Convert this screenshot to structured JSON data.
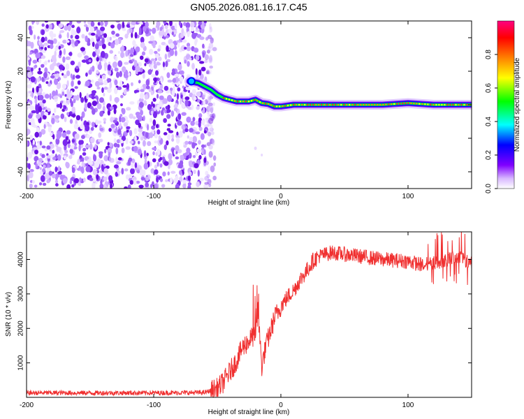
{
  "chart_data": [
    {
      "type": "heatmap",
      "title": "GN05.2026.081.16.17.C45",
      "xlabel": "Height of straight line (km)",
      "ylabel": "Frequency (Hz)",
      "xlim": [
        -200,
        150
      ],
      "ylim": [
        -50,
        50
      ],
      "xticks": [
        -200,
        -100,
        0,
        100
      ],
      "xtick_labels": [
        "-200",
        "-100",
        "0",
        "100"
      ],
      "yticks": [
        -40,
        -20,
        0,
        20,
        40
      ],
      "ytick_labels": [
        "-40",
        "-20",
        "0",
        "20",
        "40"
      ],
      "colorbar": {
        "label": "Normalized spectral amplitude",
        "range": [
          0,
          1
        ],
        "ticks": [
          0.0,
          0.2,
          0.4,
          0.6,
          0.8
        ],
        "tick_labels": [
          "0.0",
          "0.2",
          "0.4",
          "0.6",
          "0.8"
        ],
        "colormap": [
          "#ffffff",
          "#8000ff",
          "#0000ff",
          "#00ffff",
          "#00ff00",
          "#ffff00",
          "#ff8000",
          "#ff0000",
          "#ff0080"
        ]
      },
      "noise_region": {
        "x_range": [
          -200,
          -52
        ],
        "description": "broadband noise"
      },
      "carrier_trace": {
        "x": [
          -72,
          -65,
          -60,
          -55,
          -50,
          -45,
          -40,
          -35,
          -30,
          -25,
          -20,
          -15,
          -10,
          -5,
          0,
          10,
          20,
          40,
          60,
          80,
          100,
          120,
          150
        ],
        "freq": [
          14,
          13,
          11,
          9,
          6,
          4,
          3,
          2,
          2,
          2,
          3,
          1,
          0.5,
          -1,
          -1,
          0,
          0,
          0,
          0,
          0,
          1,
          0,
          0
        ]
      }
    },
    {
      "type": "line",
      "xlabel": "Height of straight line (km)",
      "ylabel": "SNR (10 * v/v)",
      "xlim": [
        -200,
        150
      ],
      "ylim": [
        0,
        4800
      ],
      "xticks": [
        -200,
        -100,
        0,
        100
      ],
      "xtick_labels": [
        "-200",
        "-100",
        "0",
        "100"
      ],
      "yticks": [
        1000,
        2000,
        3000,
        4000
      ],
      "ytick_labels": [
        "1000",
        "2000",
        "3000",
        "4000"
      ],
      "series": [
        {
          "name": "SNR",
          "color": "#f03030",
          "x": [
            -200,
            -150,
            -100,
            -60,
            -50,
            -45,
            -40,
            -35,
            -30,
            -25,
            -20,
            -18,
            -15,
            -12,
            -10,
            -5,
            0,
            5,
            10,
            15,
            20,
            25,
            30,
            40,
            50,
            60,
            80,
            100,
            110,
            120,
            130,
            140,
            150
          ],
          "y": [
            130,
            130,
            130,
            140,
            250,
            450,
            750,
            1050,
            1450,
            1650,
            1850,
            2500,
            900,
            1450,
            1700,
            2300,
            2650,
            2900,
            3100,
            3400,
            3650,
            3950,
            4100,
            4200,
            4150,
            4100,
            4000,
            3950,
            3850,
            3900,
            4000,
            4100,
            3900
          ]
        }
      ]
    }
  ]
}
